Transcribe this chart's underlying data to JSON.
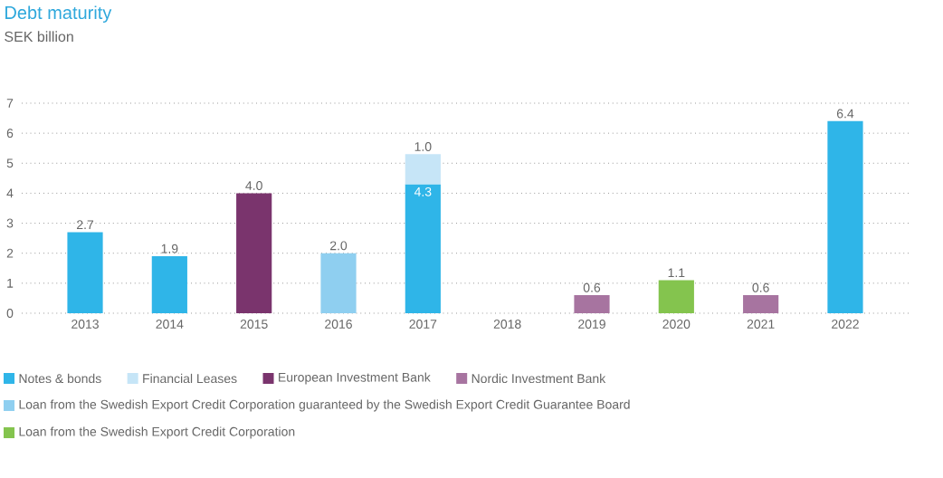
{
  "chart_data": {
    "type": "bar",
    "title": "Debt maturity",
    "subtitle": "SEK billion",
    "categories": [
      "2013",
      "2014",
      "2015",
      "2016",
      "2017",
      "2018",
      "2019",
      "2020",
      "2021",
      "2022"
    ],
    "stacked": true,
    "grid": "y",
    "legend": "bottom",
    "ylim": [
      0,
      7
    ],
    "yticks": [
      0,
      1,
      2,
      3,
      4,
      5,
      6,
      7
    ],
    "series": [
      {
        "name": "Notes & bonds",
        "color": "#2fb5e8",
        "values": [
          2.7,
          1.9,
          null,
          null,
          4.3,
          null,
          null,
          null,
          null,
          6.4
        ],
        "value_labels": [
          "2.7",
          "1.9",
          null,
          null,
          "4.3",
          null,
          null,
          null,
          null,
          "6.4"
        ]
      },
      {
        "name": "Financial Leases",
        "color": "#c6e5f7",
        "values": [
          null,
          null,
          null,
          null,
          1.0,
          null,
          null,
          null,
          null,
          null
        ],
        "value_labels": [
          null,
          null,
          null,
          null,
          "1.0",
          null,
          null,
          null,
          null,
          null
        ]
      },
      {
        "name": "European Investment Bank",
        "color": "#7a346d",
        "values": [
          null,
          null,
          4.0,
          null,
          null,
          null,
          null,
          null,
          null,
          null
        ],
        "value_labels": [
          null,
          null,
          "4.0",
          null,
          null,
          null,
          null,
          null,
          null,
          null
        ]
      },
      {
        "name": "Nordic Investment Bank",
        "color": "#a774a0",
        "values": [
          null,
          null,
          null,
          null,
          null,
          null,
          0.6,
          null,
          0.6,
          null
        ],
        "value_labels": [
          null,
          null,
          null,
          null,
          null,
          null,
          "0.6",
          null,
          "0.6",
          null
        ]
      },
      {
        "name": "Loan from the Swedish Export Credit Corporation guaranteed by the Swedish Export Credit Guarantee Board",
        "color": "#8fcff0",
        "values": [
          null,
          null,
          null,
          2.0,
          null,
          null,
          null,
          null,
          null,
          null
        ],
        "value_labels": [
          null,
          null,
          null,
          "2.0",
          null,
          null,
          null,
          null,
          null,
          null
        ]
      },
      {
        "name": "Loan from the Swedish Export Credit Corporation",
        "color": "#84c44e",
        "values": [
          null,
          null,
          null,
          null,
          null,
          null,
          null,
          1.1,
          null,
          null
        ],
        "value_labels": [
          null,
          null,
          null,
          null,
          null,
          null,
          null,
          "1.1",
          null,
          null
        ]
      }
    ]
  }
}
